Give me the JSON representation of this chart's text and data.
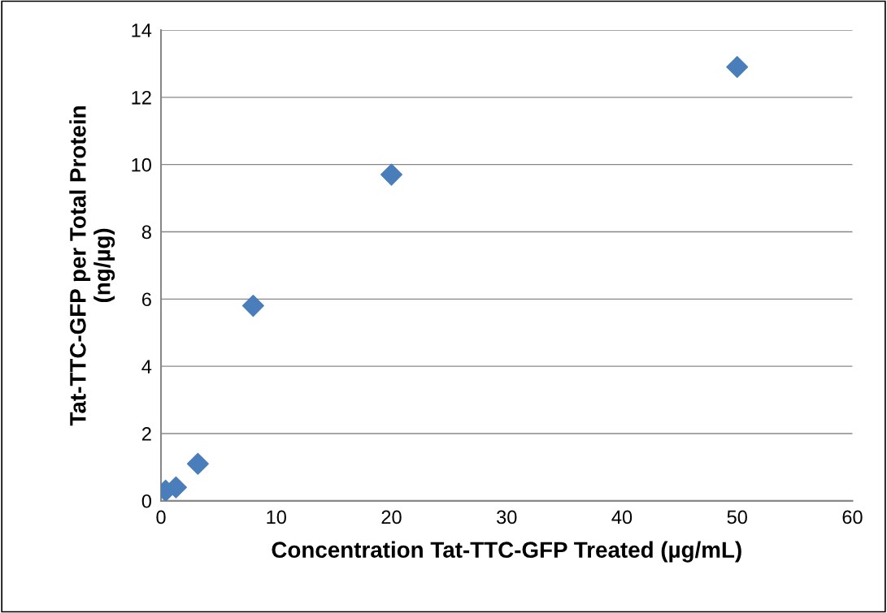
{
  "chart_data": {
    "type": "scatter",
    "xlabel": "Concentration Tat-TTC-GFP Treated (µg/mL)",
    "ylabel": "Tat-TTC-GFP per Total Protein\n(ng/µg)",
    "x": [
      0.4,
      1.3,
      3.2,
      8,
      20,
      50
    ],
    "series": [
      {
        "color": "#4a7ebb",
        "values": [
          0.3,
          0.4,
          1.1,
          5.8,
          9.7,
          12.9
        ]
      }
    ],
    "xlim": [
      0,
      60
    ],
    "xticks": [
      0,
      10,
      20,
      30,
      40,
      50,
      60
    ],
    "ylim": [
      0,
      14
    ],
    "yticks": [
      0,
      2,
      4,
      6,
      8,
      10,
      12,
      14
    ],
    "grid": "y",
    "marker": "diamond",
    "legend": false
  }
}
